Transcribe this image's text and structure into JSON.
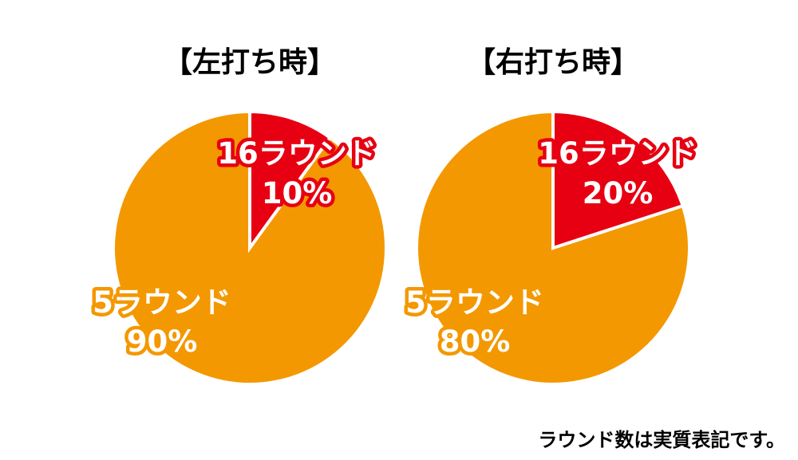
{
  "chart_data": [
    {
      "type": "pie",
      "title": "【左打ち時】",
      "slices": [
        {
          "label": "16ラウンド",
          "value": 10,
          "value_text": "10%",
          "color": "#e60012"
        },
        {
          "label": "5ラウンド",
          "value": 90,
          "value_text": "90%",
          "color": "#f39800"
        }
      ]
    },
    {
      "type": "pie",
      "title": "【右打ち時】",
      "slices": [
        {
          "label": "16ラウンド",
          "value": 20,
          "value_text": "20%",
          "color": "#e60012"
        },
        {
          "label": "5ラウンド",
          "value": 80,
          "value_text": "80%",
          "color": "#f39800"
        }
      ]
    }
  ],
  "footnote": "ラウンド数は実質表記です。"
}
